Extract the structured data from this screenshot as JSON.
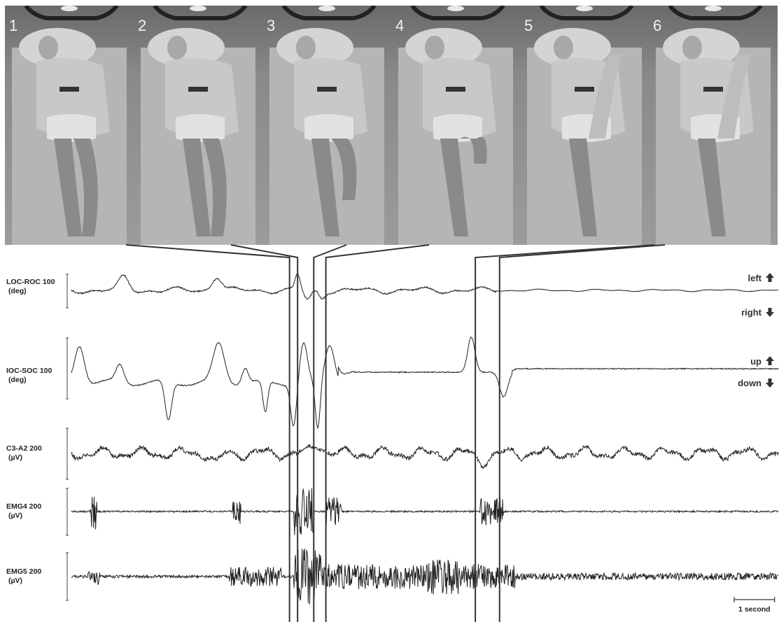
{
  "frames": [
    {
      "number": "1",
      "leg_phase": 0
    },
    {
      "number": "2",
      "leg_phase": 0
    },
    {
      "number": "3",
      "leg_phase": 0.2
    },
    {
      "number": "4",
      "leg_phase": 0.4
    },
    {
      "number": "5",
      "leg_phase": 1
    },
    {
      "number": "6",
      "leg_phase": 1
    }
  ],
  "direction_labels": {
    "left": "left",
    "right": "right",
    "up": "up",
    "down": "down"
  },
  "scale_bar_label": "1 second",
  "chart_data": {
    "type": "line",
    "title": "",
    "xlabel": "",
    "duration_seconds": 17.5,
    "channels": [
      {
        "name": "LOC-ROC",
        "unit": "(deg)",
        "scale": "100"
      },
      {
        "name": "IOC-SOC",
        "unit": "(deg)",
        "scale": "100"
      },
      {
        "name": "C3-A2",
        "unit": "(µV)",
        "scale": "200"
      },
      {
        "name": "EMG4",
        "unit": "(µV)",
        "scale": "200"
      },
      {
        "name": "EMG5",
        "unit": "(µV)",
        "scale": "200"
      }
    ],
    "frame_markers_seconds": [
      5.4,
      5.6,
      6.0,
      6.3,
      10.0,
      10.6
    ]
  }
}
